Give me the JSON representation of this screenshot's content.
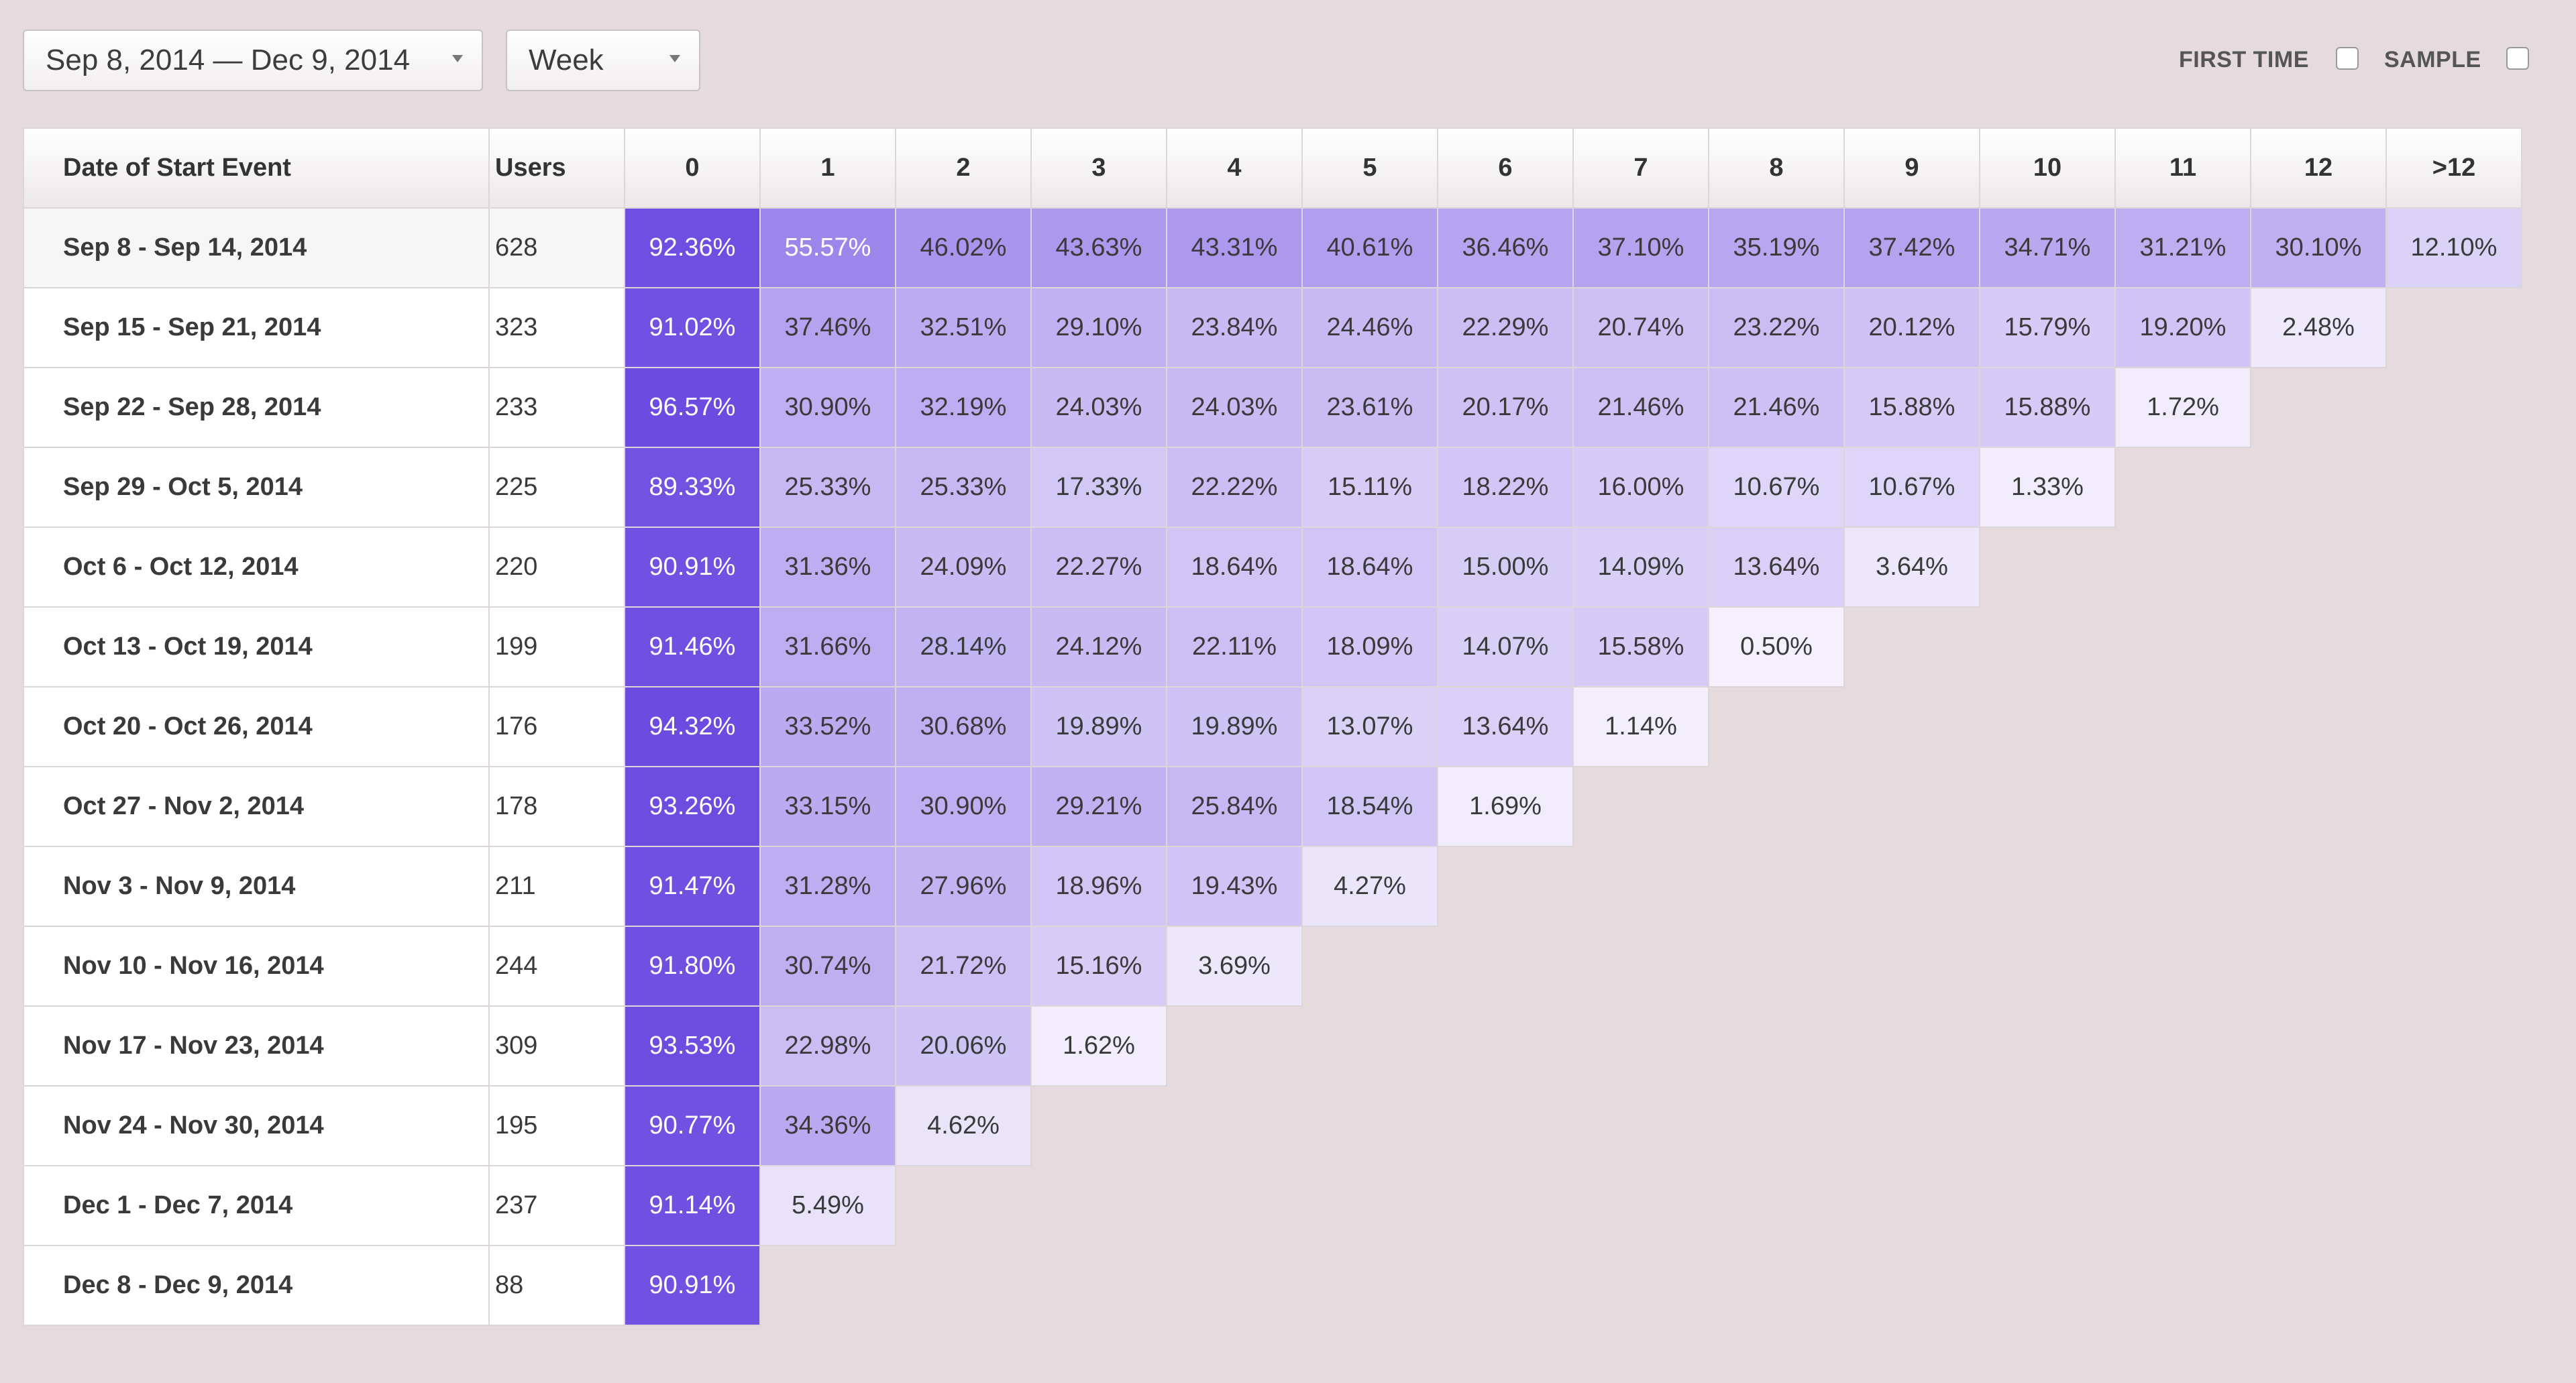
{
  "filters": {
    "date_range": "Sep 8, 2014 — Dec 9, 2014",
    "period": "Week",
    "first_time_label": "FIRST TIME",
    "sample_label": "SAMPLE"
  },
  "table": {
    "headers": {
      "date": "Date of Start Event",
      "users": "Users",
      "periods": [
        "0",
        "1",
        "2",
        "3",
        "4",
        "5",
        "6",
        "7",
        "8",
        "9",
        "10",
        "11",
        "12",
        ">12"
      ]
    },
    "rows": [
      {
        "date": "Sep 8 - Sep 14, 2014",
        "users": "628",
        "values": [
          "92.36%",
          "55.57%",
          "46.02%",
          "43.63%",
          "43.31%",
          "40.61%",
          "36.46%",
          "37.10%",
          "35.19%",
          "37.42%",
          "34.71%",
          "31.21%",
          "30.10%",
          "12.10%"
        ]
      },
      {
        "date": "Sep 15 - Sep 21, 2014",
        "users": "323",
        "values": [
          "91.02%",
          "37.46%",
          "32.51%",
          "29.10%",
          "23.84%",
          "24.46%",
          "22.29%",
          "20.74%",
          "23.22%",
          "20.12%",
          "15.79%",
          "19.20%",
          "2.48%"
        ]
      },
      {
        "date": "Sep 22 - Sep 28, 2014",
        "users": "233",
        "values": [
          "96.57%",
          "30.90%",
          "32.19%",
          "24.03%",
          "24.03%",
          "23.61%",
          "20.17%",
          "21.46%",
          "21.46%",
          "15.88%",
          "15.88%",
          "1.72%"
        ]
      },
      {
        "date": "Sep 29 - Oct 5, 2014",
        "users": "225",
        "values": [
          "89.33%",
          "25.33%",
          "25.33%",
          "17.33%",
          "22.22%",
          "15.11%",
          "18.22%",
          "16.00%",
          "10.67%",
          "10.67%",
          "1.33%"
        ]
      },
      {
        "date": "Oct 6 - Oct 12, 2014",
        "users": "220",
        "values": [
          "90.91%",
          "31.36%",
          "24.09%",
          "22.27%",
          "18.64%",
          "18.64%",
          "15.00%",
          "14.09%",
          "13.64%",
          "3.64%"
        ]
      },
      {
        "date": "Oct 13 - Oct 19, 2014",
        "users": "199",
        "values": [
          "91.46%",
          "31.66%",
          "28.14%",
          "24.12%",
          "22.11%",
          "18.09%",
          "14.07%",
          "15.58%",
          "0.50%"
        ]
      },
      {
        "date": "Oct 20 - Oct 26, 2014",
        "users": "176",
        "values": [
          "94.32%",
          "33.52%",
          "30.68%",
          "19.89%",
          "19.89%",
          "13.07%",
          "13.64%",
          "1.14%"
        ]
      },
      {
        "date": "Oct 27 - Nov 2, 2014",
        "users": "178",
        "values": [
          "93.26%",
          "33.15%",
          "30.90%",
          "29.21%",
          "25.84%",
          "18.54%",
          "1.69%"
        ]
      },
      {
        "date": "Nov 3 - Nov 9, 2014",
        "users": "211",
        "values": [
          "91.47%",
          "31.28%",
          "27.96%",
          "18.96%",
          "19.43%",
          "4.27%"
        ]
      },
      {
        "date": "Nov 10 - Nov 16, 2014",
        "users": "244",
        "values": [
          "91.80%",
          "30.74%",
          "21.72%",
          "15.16%",
          "3.69%"
        ]
      },
      {
        "date": "Nov 17 - Nov 23, 2014",
        "users": "309",
        "values": [
          "93.53%",
          "22.98%",
          "20.06%",
          "1.62%"
        ]
      },
      {
        "date": "Nov 24 - Nov 30, 2014",
        "users": "195",
        "values": [
          "90.77%",
          "34.36%",
          "4.62%"
        ]
      },
      {
        "date": "Dec 1 - Dec 7, 2014",
        "users": "237",
        "values": [
          "91.14%",
          "5.49%"
        ]
      },
      {
        "date": "Dec 8 - Dec 9, 2014",
        "users": "88",
        "values": [
          "90.91%"
        ]
      }
    ]
  },
  "colors": {
    "accent_dark": "#6b4be0",
    "accent_light": "#f6f3fd",
    "background": "#e5dbde"
  }
}
